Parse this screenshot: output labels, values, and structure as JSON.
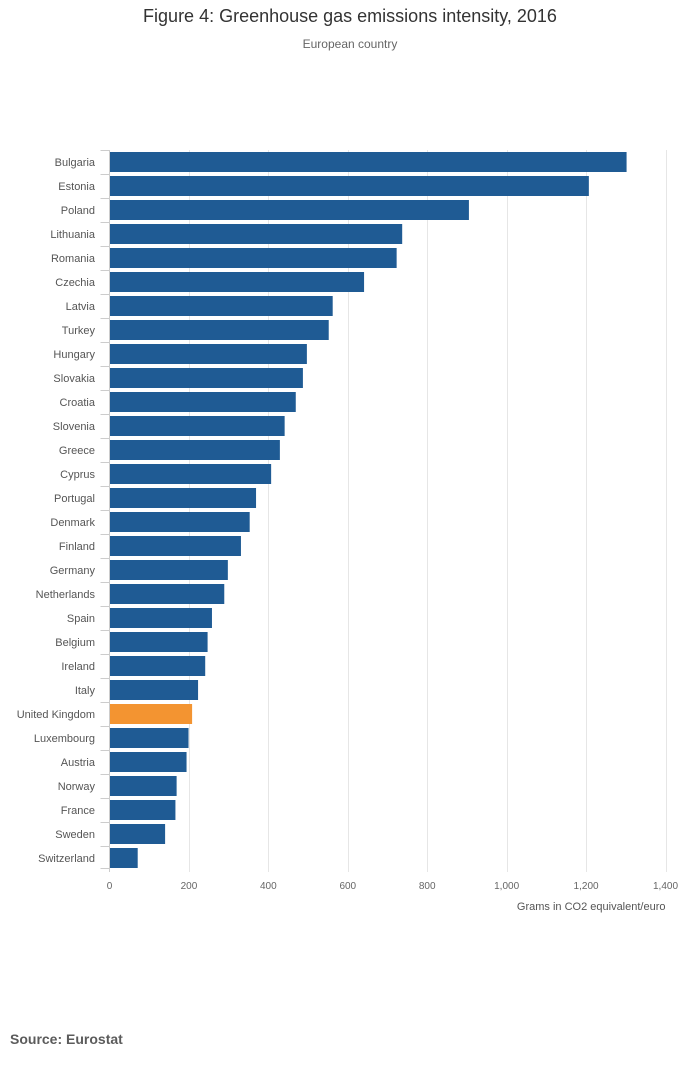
{
  "colors": {
    "bar": "#1f5b94",
    "highlight": "#f39431",
    "grid": "#e6e6e6",
    "axis": "#cccccc"
  },
  "chart_data": {
    "type": "bar",
    "orientation": "horizontal",
    "title": "Figure 4: Greenhouse gas emissions intensity, 2016",
    "subtitle": "European country",
    "xlabel": "Grams in CO2 equivalent/euro",
    "ylabel": "",
    "xlim": [
      0,
      1400
    ],
    "x_ticks": [
      0,
      200,
      400,
      600,
      800,
      1000,
      1200,
      1400
    ],
    "x_tick_labels": [
      "0",
      "200",
      "400",
      "600",
      "800",
      "1,000",
      "1,200",
      "1,400"
    ],
    "grid": true,
    "highlight": "United Kingdom",
    "categories": [
      "Bulgaria",
      "Estonia",
      "Poland",
      "Lithuania",
      "Romania",
      "Czechia",
      "Latvia",
      "Turkey",
      "Hungary",
      "Slovakia",
      "Croatia",
      "Slovenia",
      "Greece",
      "Cyprus",
      "Portugal",
      "Denmark",
      "Finland",
      "Germany",
      "Netherlands",
      "Spain",
      "Belgium",
      "Ireland",
      "Italy",
      "United Kingdom",
      "Luxembourg",
      "Austria",
      "Norway",
      "France",
      "Sweden",
      "Switzerland"
    ],
    "values": [
      1302,
      1207,
      905,
      737,
      723,
      641,
      562,
      552,
      497,
      487,
      469,
      441,
      429,
      407,
      369,
      353,
      331,
      298,
      289,
      258,
      247,
      241,
      223,
      208,
      199,
      194,
      169,
      166,
      140,
      71
    ]
  },
  "source": "Source: Eurostat"
}
